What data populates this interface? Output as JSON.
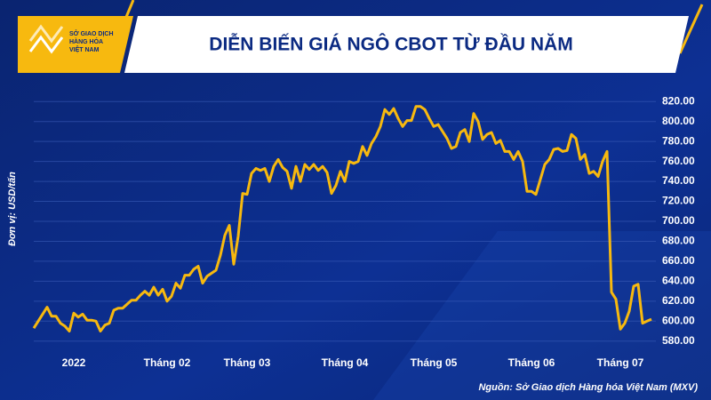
{
  "logo": [
    "SỞ GIAO DỊCH",
    "HÀNG HÓA",
    "VIỆT NAM"
  ],
  "chart_data": {
    "type": "line",
    "title": "DIỄN BIẾN GIÁ NGÔ CBOT TỪ ĐẦU NĂM",
    "ylabel": "Đơn vị: USD/tấn",
    "source": "Nguồn: Sở Giao dịch Hàng hóa Việt Nam (MXV)",
    "color": "#f7b90f",
    "grid": true,
    "xlim": [
      0,
      139
    ],
    "ylim": [
      570,
      830
    ],
    "xticks": [
      {
        "value": 9,
        "label": "2022"
      },
      {
        "value": 30,
        "label": "Tháng 02"
      },
      {
        "value": 48,
        "label": "Tháng 03"
      },
      {
        "value": 70,
        "label": "Tháng 04"
      },
      {
        "value": 90,
        "label": "Tháng 05"
      },
      {
        "value": 112,
        "label": "Tháng 06"
      },
      {
        "value": 132,
        "label": "Tháng 07"
      }
    ],
    "yticks": [
      {
        "value": 580,
        "label": "580.00"
      },
      {
        "value": 600,
        "label": "600.00"
      },
      {
        "value": 620,
        "label": "620.00"
      },
      {
        "value": 640,
        "label": "640.00"
      },
      {
        "value": 660,
        "label": "660.00"
      },
      {
        "value": 680,
        "label": "680.00"
      },
      {
        "value": 700,
        "label": "700.00"
      },
      {
        "value": 720,
        "label": "720.00"
      },
      {
        "value": 740,
        "label": "740.00"
      },
      {
        "value": 760,
        "label": "760.00"
      },
      {
        "value": 780,
        "label": "780.00"
      },
      {
        "value": 800,
        "label": "800.00"
      },
      {
        "value": 820,
        "label": "820.00"
      }
    ],
    "values": [
      593,
      600,
      607,
      614,
      605,
      605,
      598,
      595,
      590,
      608,
      604,
      607,
      601,
      601,
      600,
      590,
      596,
      598,
      611,
      613,
      613,
      617,
      621,
      621,
      626,
      630,
      626,
      634,
      626,
      632,
      620,
      625,
      638,
      633,
      646,
      646,
      652,
      655,
      638,
      645,
      648,
      651,
      666,
      686,
      696,
      657,
      685,
      728,
      727,
      748,
      753,
      751,
      753,
      740,
      755,
      762,
      754,
      750,
      733,
      755,
      740,
      757,
      752,
      757,
      751,
      755,
      749,
      728,
      736,
      750,
      740,
      760,
      758,
      760,
      775,
      766,
      778,
      785,
      795,
      812,
      807,
      813,
      803,
      795,
      801,
      801,
      815,
      815,
      812,
      803,
      795,
      797,
      790,
      783,
      773,
      775,
      789,
      792,
      780,
      808,
      800,
      782,
      787,
      789,
      778,
      781,
      770,
      770,
      762,
      770,
      760,
      730,
      730,
      727,
      742,
      757,
      762,
      772,
      773,
      770,
      771,
      787,
      783,
      762,
      767,
      748,
      750,
      745,
      760,
      770,
      629,
      622,
      592,
      598,
      610,
      635,
      637,
      598,
      600,
      602
    ]
  }
}
